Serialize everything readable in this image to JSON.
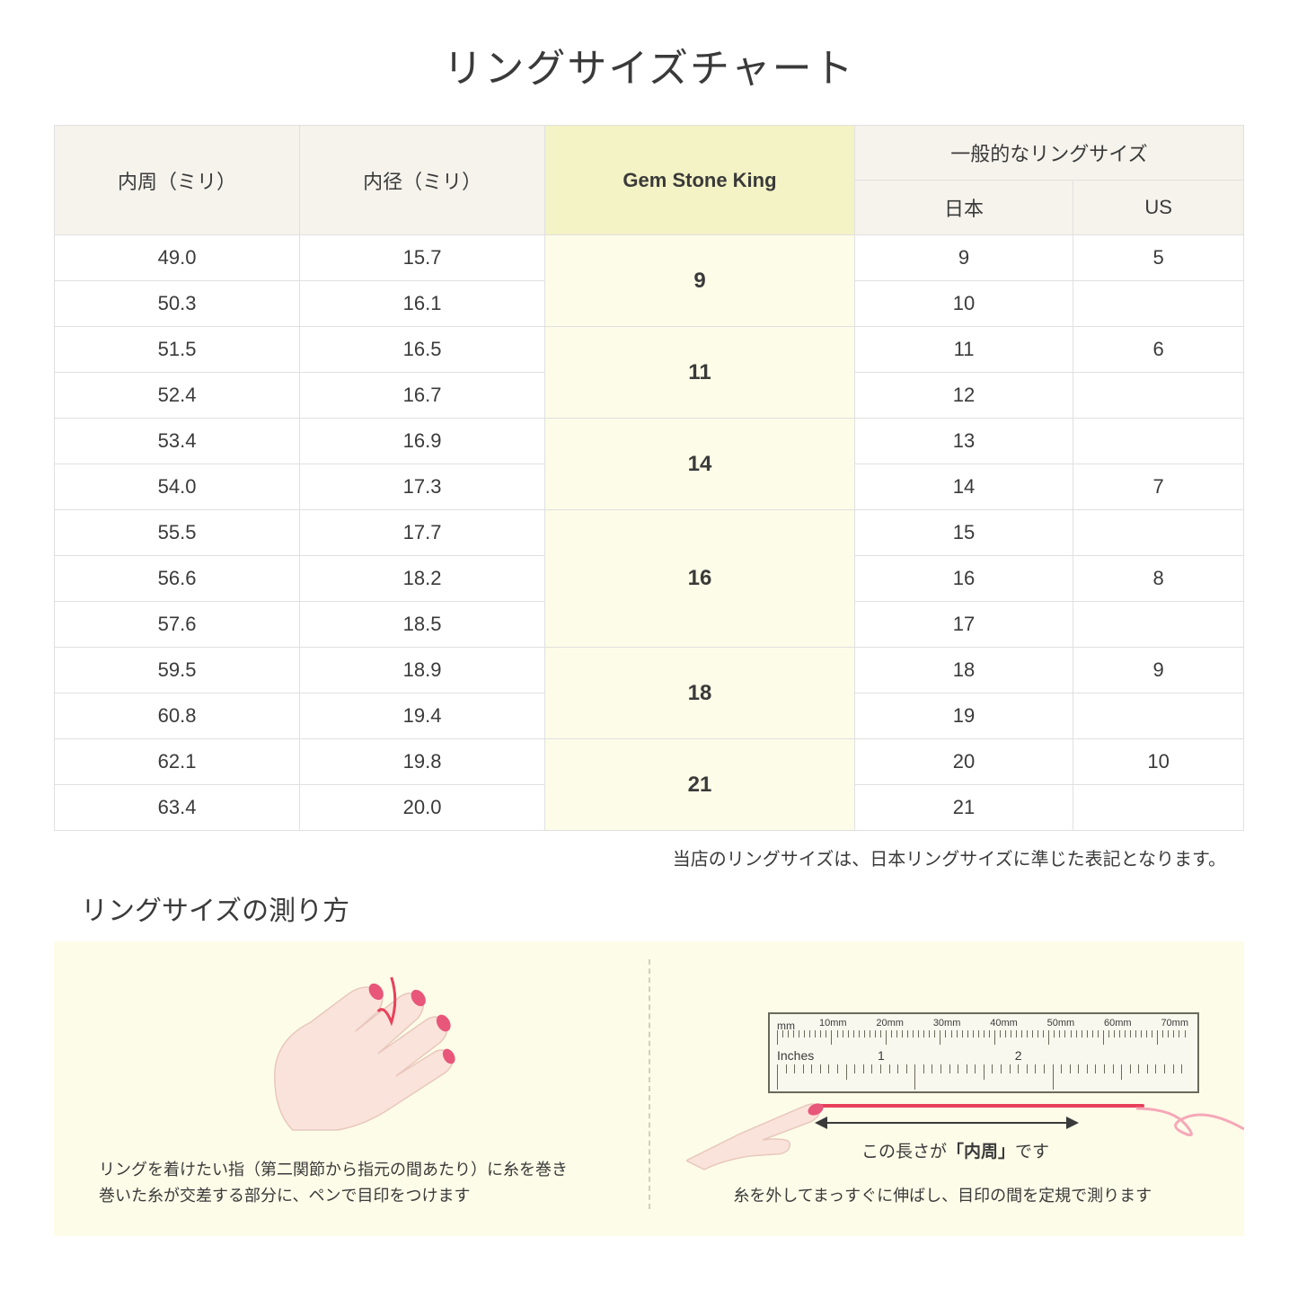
{
  "title": "リングサイズチャート",
  "headers": {
    "circumference": "内周（ミリ）",
    "diameter": "内径（ミリ）",
    "gsk": "Gem Stone King",
    "common": "一般的なリングサイズ",
    "japan": "日本",
    "us": "US"
  },
  "rows": [
    {
      "circ": "49.0",
      "diam": "15.7",
      "jp": "9",
      "us": "5",
      "gsk": "9",
      "gsk_span": 2
    },
    {
      "circ": "50.3",
      "diam": "16.1",
      "jp": "10",
      "us": ""
    },
    {
      "circ": "51.5",
      "diam": "16.5",
      "jp": "11",
      "us": "6",
      "gsk": "11",
      "gsk_span": 2
    },
    {
      "circ": "52.4",
      "diam": "16.7",
      "jp": "12",
      "us": ""
    },
    {
      "circ": "53.4",
      "diam": "16.9",
      "jp": "13",
      "us": "",
      "gsk": "14",
      "gsk_span": 2
    },
    {
      "circ": "54.0",
      "diam": "17.3",
      "jp": "14",
      "us": "7"
    },
    {
      "circ": "55.5",
      "diam": "17.7",
      "jp": "15",
      "us": "",
      "gsk": "16",
      "gsk_span": 3
    },
    {
      "circ": "56.6",
      "diam": "18.2",
      "jp": "16",
      "us": "8"
    },
    {
      "circ": "57.6",
      "diam": "18.5",
      "jp": "17",
      "us": ""
    },
    {
      "circ": "59.5",
      "diam": "18.9",
      "jp": "18",
      "us": "9",
      "gsk": "18",
      "gsk_span": 2
    },
    {
      "circ": "60.8",
      "diam": "19.4",
      "jp": "19",
      "us": ""
    },
    {
      "circ": "62.1",
      "diam": "19.8",
      "jp": "20",
      "us": "10",
      "gsk": "21",
      "gsk_span": 2
    },
    {
      "circ": "63.4",
      "diam": "20.0",
      "jp": "21",
      "us": ""
    }
  ],
  "note": "当店のリングサイズは、日本リングサイズに準じた表記となります。",
  "howto_title": "リングサイズの測り方",
  "instruction_left": "リングを着けたい指（第二関節から指元の間あたり）に糸を巻き\n巻いた糸が交差する部分に、ペンで目印をつけます",
  "instruction_right": "糸を外してまっすぐに伸ばし、目印の間を定規で測ります",
  "ruler": {
    "mm_label": "mm",
    "mm_marks": [
      "10mm",
      "20mm",
      "30mm",
      "40mm",
      "50mm",
      "60mm",
      "70mm"
    ],
    "inch_label": "Inches",
    "inch_marks": [
      "1",
      "2"
    ]
  },
  "arrow_label_pre": "この長さが",
  "arrow_label_bold": "「内周」",
  "arrow_label_post": "です",
  "colors": {
    "header_bg": "#f5f3ec",
    "gsk_header_bg": "#f4f3c5",
    "gsk_cell_bg": "#fdfce8",
    "instruction_bg": "#fdfce8",
    "thread": "#e8405a",
    "hand_fill": "#fae3da",
    "nail": "#e8567a",
    "border": "#e0e0e0"
  }
}
